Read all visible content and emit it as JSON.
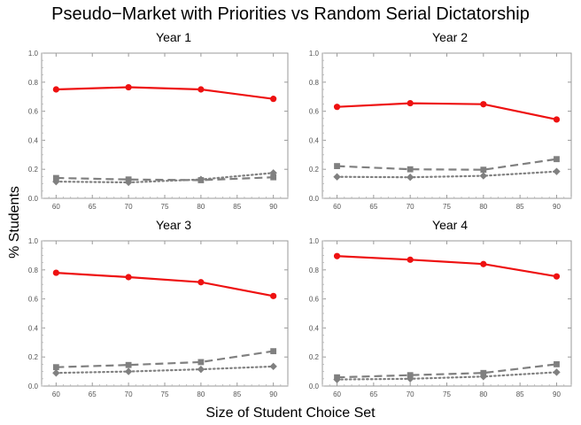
{
  "figure": {
    "title": "Pseudo−Market with Priorities vs Random Serial Dictatorship",
    "ylabel": "% Students",
    "xlabel": "Size of Student Choice Set"
  },
  "chart_data": [
    {
      "type": "line",
      "title": "Year 1",
      "x": [
        60,
        70,
        80,
        90
      ],
      "xticks": [
        60,
        65,
        70,
        75,
        80,
        85,
        90
      ],
      "yticks": [
        0,
        0.2,
        0.4,
        0.6,
        0.8,
        1.0
      ],
      "ytick_labels": [
        "0.0",
        "0.2",
        "0.4",
        "0.6",
        "0.8",
        "1.0"
      ],
      "xlim": [
        58,
        92
      ],
      "ylim": [
        0,
        1.0
      ],
      "series": [
        {
          "style": "solid",
          "marker": "circle",
          "color": "#ee1111",
          "values": [
            0.75,
            0.765,
            0.75,
            0.685
          ]
        },
        {
          "style": "dashed",
          "marker": "square",
          "color": "#808080",
          "values": [
            0.14,
            0.13,
            0.125,
            0.145
          ]
        },
        {
          "style": "dotted",
          "marker": "diamond",
          "color": "#808080",
          "values": [
            0.115,
            0.11,
            0.13,
            0.175
          ]
        }
      ]
    },
    {
      "type": "line",
      "title": "Year 2",
      "x": [
        60,
        70,
        80,
        90
      ],
      "xticks": [
        60,
        65,
        70,
        75,
        80,
        85,
        90
      ],
      "yticks": [
        0,
        0.2,
        0.4,
        0.6,
        0.8,
        1.0
      ],
      "ytick_labels": [
        "0.0",
        "0.2",
        "0.4",
        "0.6",
        "0.8",
        "1.0"
      ],
      "xlim": [
        58,
        92
      ],
      "ylim": [
        0,
        1.0
      ],
      "series": [
        {
          "style": "solid",
          "marker": "circle",
          "color": "#ee1111",
          "values": [
            0.63,
            0.655,
            0.648,
            0.543
          ]
        },
        {
          "style": "dashed",
          "marker": "square",
          "color": "#808080",
          "values": [
            0.222,
            0.2,
            0.197,
            0.27
          ]
        },
        {
          "style": "dotted",
          "marker": "diamond",
          "color": "#808080",
          "values": [
            0.148,
            0.145,
            0.155,
            0.185
          ]
        }
      ]
    },
    {
      "type": "line",
      "title": "Year 3",
      "x": [
        60,
        70,
        80,
        90
      ],
      "xticks": [
        60,
        65,
        70,
        75,
        80,
        85,
        90
      ],
      "yticks": [
        0,
        0.2,
        0.4,
        0.6,
        0.8,
        1.0
      ],
      "ytick_labels": [
        "0.0",
        "0.2",
        "0.4",
        "0.6",
        "0.8",
        "1.0"
      ],
      "xlim": [
        58,
        92
      ],
      "ylim": [
        0,
        1.0
      ],
      "series": [
        {
          "style": "solid",
          "marker": "circle",
          "color": "#ee1111",
          "values": [
            0.78,
            0.75,
            0.715,
            0.62
          ]
        },
        {
          "style": "dashed",
          "marker": "square",
          "color": "#808080",
          "values": [
            0.13,
            0.145,
            0.165,
            0.24
          ]
        },
        {
          "style": "dotted",
          "marker": "diamond",
          "color": "#808080",
          "values": [
            0.09,
            0.1,
            0.115,
            0.135
          ]
        }
      ]
    },
    {
      "type": "line",
      "title": "Year 4",
      "x": [
        60,
        70,
        80,
        90
      ],
      "xticks": [
        60,
        65,
        70,
        75,
        80,
        85,
        90
      ],
      "yticks": [
        0,
        0.2,
        0.4,
        0.6,
        0.8,
        1.0
      ],
      "ytick_labels": [
        "0.0",
        "0.2",
        "0.4",
        "0.6",
        "0.8",
        "1.0"
      ],
      "xlim": [
        58,
        92
      ],
      "ylim": [
        0,
        1.0
      ],
      "series": [
        {
          "style": "solid",
          "marker": "circle",
          "color": "#ee1111",
          "values": [
            0.895,
            0.87,
            0.84,
            0.755
          ]
        },
        {
          "style": "dashed",
          "marker": "square",
          "color": "#808080",
          "values": [
            0.06,
            0.075,
            0.09,
            0.15
          ]
        },
        {
          "style": "dotted",
          "marker": "diamond",
          "color": "#808080",
          "values": [
            0.045,
            0.05,
            0.065,
            0.095
          ]
        }
      ]
    }
  ]
}
